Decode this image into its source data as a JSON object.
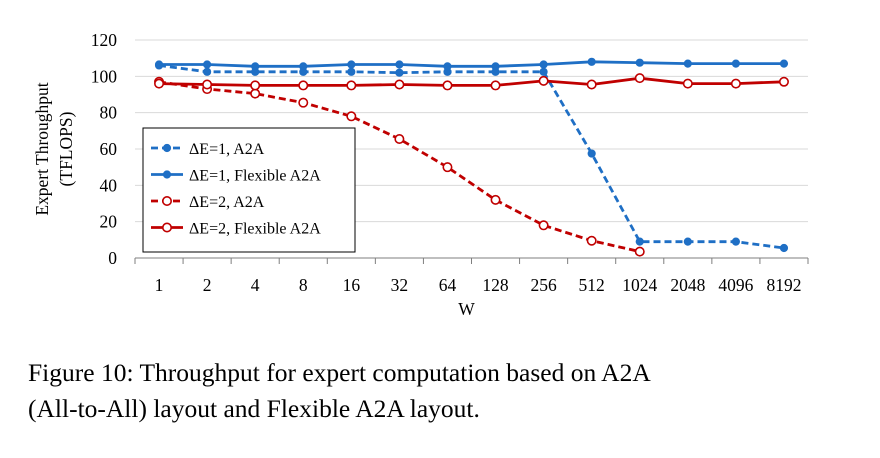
{
  "chart_data": {
    "type": "line",
    "title": "",
    "xlabel": "W",
    "ylabel": "Expert Throughput (TFLOPS)",
    "ylabel_lines": [
      "Expert Throughput",
      "(TFLOPS)"
    ],
    "ylim": [
      0,
      120
    ],
    "yticks": [
      0,
      20,
      40,
      60,
      80,
      100,
      120
    ],
    "y_tick_labels": [
      "0",
      "20",
      "40",
      "60",
      "80",
      "100",
      "120"
    ],
    "categories": [
      "1",
      "2",
      "4",
      "8",
      "16",
      "32",
      "64",
      "128",
      "256",
      "512",
      "1024",
      "2048",
      "4096",
      "8192"
    ],
    "grid": "horizontal",
    "legend_position": "left",
    "series": [
      {
        "name": "ΔE=1, A2A",
        "color": "#1f6fc5",
        "line_style": "dashed",
        "marker": "filled-circle",
        "values": [
          106,
          102.5,
          102.5,
          102.5,
          102.5,
          102,
          102.5,
          102.5,
          102.5,
          57.5,
          9,
          9,
          9,
          5.5
        ]
      },
      {
        "name": "ΔE=1, Flexible A2A",
        "color": "#1f6fc5",
        "line_style": "solid",
        "marker": "filled-circle",
        "values": [
          106.5,
          106.5,
          105.5,
          105.5,
          106.5,
          106.5,
          105.5,
          105.5,
          106.5,
          108,
          107.5,
          107,
          107,
          107
        ]
      },
      {
        "name": "ΔE=2, A2A",
        "color": "#c00000",
        "line_style": "dashed",
        "marker": "open-circle",
        "values": [
          97,
          93,
          90.5,
          85.5,
          78,
          65.5,
          50,
          32,
          18,
          9.5,
          3.5,
          null,
          null,
          null
        ]
      },
      {
        "name": "ΔE=2, Flexible A2A",
        "color": "#c00000",
        "line_style": "solid",
        "marker": "open-circle",
        "values": [
          96,
          95.5,
          95,
          95,
          95,
          95.5,
          95,
          95,
          97.5,
          95.5,
          99,
          96,
          96,
          97
        ]
      }
    ]
  },
  "caption": {
    "line1": "Figure 10: Throughput for expert computation based on A2A",
    "line2": "(All-to-All) layout and Flexible A2A layout."
  }
}
